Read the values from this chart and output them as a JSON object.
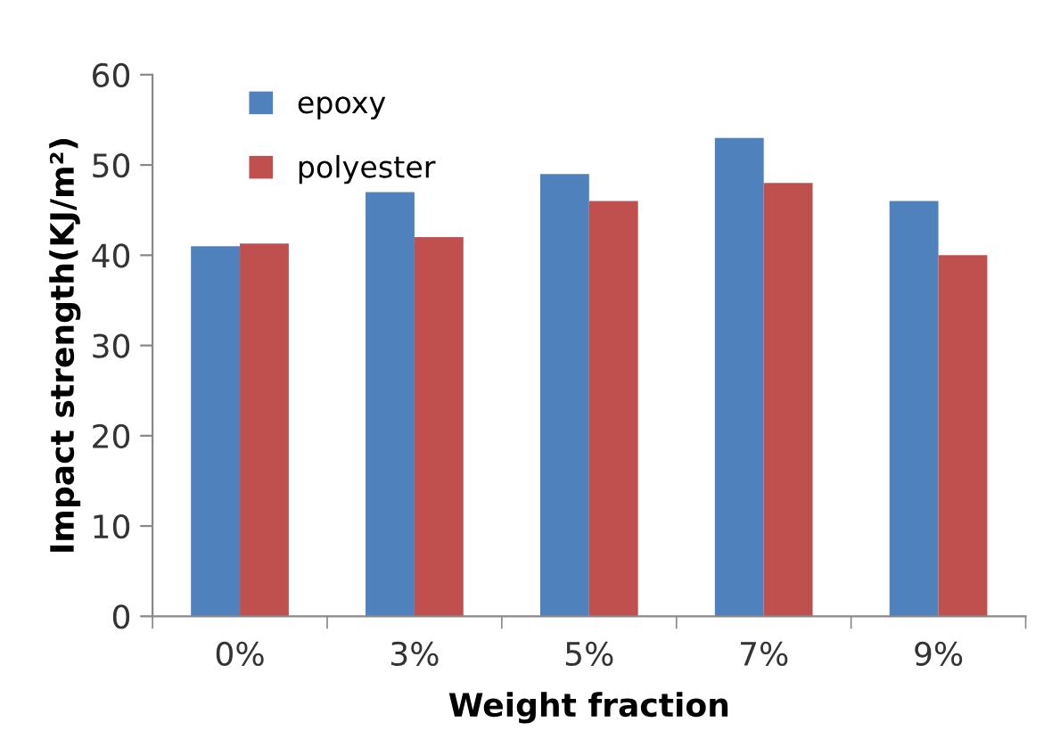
{
  "chart_data": {
    "type": "bar",
    "xlabel": "Weight fraction",
    "ylabel": "Impact strength(KJ/m²)",
    "categories": [
      "0%",
      "3%",
      "5%",
      "7%",
      "9%"
    ],
    "series": [
      {
        "name": "epoxy",
        "color": "#4f81bd",
        "values": [
          41,
          47,
          49,
          53,
          46
        ]
      },
      {
        "name": "polyester",
        "color": "#c0504d",
        "values": [
          41.3,
          42,
          46,
          48,
          40
        ]
      }
    ],
    "ylim": [
      0,
      60
    ],
    "yticks": [
      0,
      10,
      20,
      30,
      40,
      50,
      60
    ],
    "grid": false,
    "legend": "top left"
  }
}
